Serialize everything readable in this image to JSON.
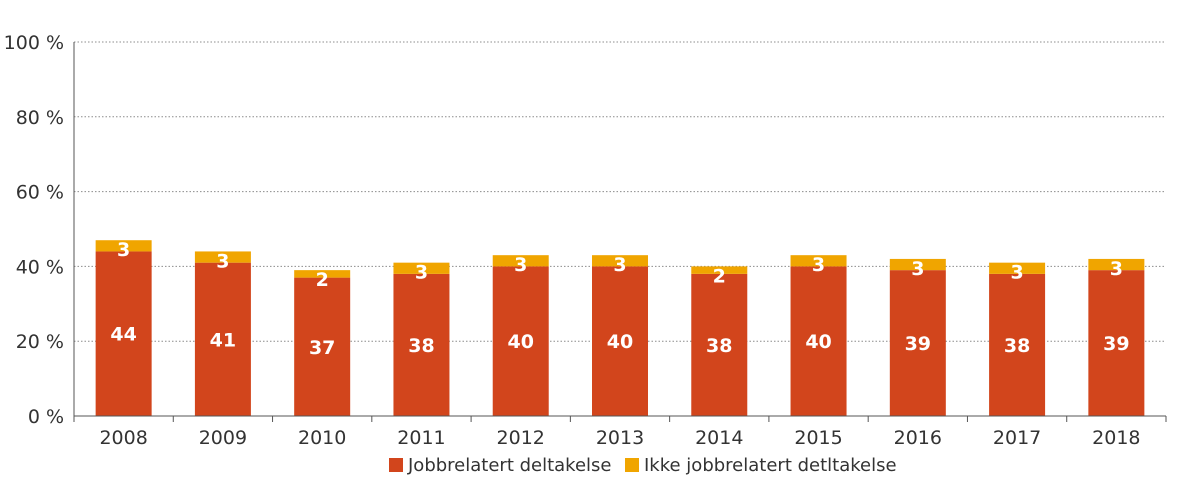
{
  "chart_data": {
    "type": "bar",
    "stacked": true,
    "categories": [
      "2008",
      "2009",
      "2010",
      "2011",
      "2012",
      "2013",
      "2014",
      "2015",
      "2016",
      "2017",
      "2018"
    ],
    "series": [
      {
        "name": "Jobbrelatert deltakelse",
        "values": [
          44,
          41,
          37,
          38,
          40,
          40,
          38,
          40,
          39,
          38,
          39
        ],
        "color": "#D2451C"
      },
      {
        "name": "Ikke jobbrelatert detltakelse",
        "values": [
          3,
          3,
          2,
          3,
          3,
          3,
          2,
          3,
          3,
          3,
          3
        ],
        "color": "#F0A500"
      }
    ],
    "ylim": [
      0,
      100
    ],
    "yticks": [
      0,
      20,
      40,
      60,
      80,
      100
    ],
    "ytick_labels": [
      "0 %",
      "20 %",
      "40 %",
      "60 %",
      "80 %",
      "100 %"
    ],
    "grid": true,
    "legend_position": "bottom",
    "title": "",
    "xlabel": "",
    "ylabel": ""
  }
}
